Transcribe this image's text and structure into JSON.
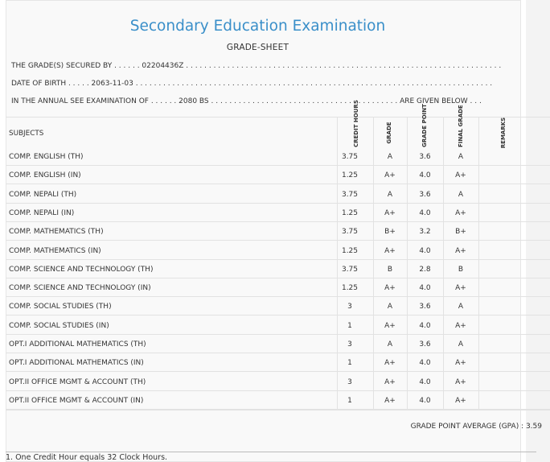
{
  "header": {
    "title": "Secondary Education Examination",
    "subtitle": "GRADE-SHEET"
  },
  "info": {
    "grade_line": "THE GRADE(S) SECURED BY . . . . . . 02204436Z . . . . . . . . . . . . . . . . . . . . . . . . . . . . . . . . . . . . . . . . . . . . . . . . . . . . . . . . . . . . . . . . . . . . . . . . . .",
    "dob_line": "DATE OF BIRTH . . . . . 2063-11-03 . . . . . . . . . . . . . . . . . . . . . . . . . . . . . . . . . . . . . . . . . . . . . . . . . . . . . . . . . . . . . . . . . . . . . . . . . . . . . .",
    "exam_line": "IN THE ANNUAL SEE EXAMINATION OF . . . . . . 2080 BS . . . . . . . . . . . . . . . . . . . . . . . . . . . . . . . . . . . . . . . . . ARE GIVEN BELOW . . ."
  },
  "table": {
    "headers": {
      "subjects": "SUBJECTS",
      "credit_hours": "CREDIT HOURS",
      "grade": "GRADE",
      "grade_point": "GRADE POINT",
      "final_grade": "FINAL GRADE",
      "remarks": "REMARKS"
    },
    "rows": [
      {
        "subject": "COMP. ENGLISH (TH)",
        "credit": "3.75",
        "grade": "A",
        "point": "3.6",
        "final": "A"
      },
      {
        "subject": "COMP. ENGLISH (IN)",
        "credit": "1.25",
        "grade": "A+",
        "point": "4.0",
        "final": "A+"
      },
      {
        "subject": "COMP. NEPALI (TH)",
        "credit": "3.75",
        "grade": "A",
        "point": "3.6",
        "final": "A"
      },
      {
        "subject": "COMP. NEPALI (IN)",
        "credit": "1.25",
        "grade": "A+",
        "point": "4.0",
        "final": "A+"
      },
      {
        "subject": "COMP. MATHEMATICS (TH)",
        "credit": "3.75",
        "grade": "B+",
        "point": "3.2",
        "final": "B+"
      },
      {
        "subject": "COMP. MATHEMATICS (IN)",
        "credit": "1.25",
        "grade": "A+",
        "point": "4.0",
        "final": "A+"
      },
      {
        "subject": "COMP. SCIENCE AND TECHNOLOGY (TH)",
        "credit": "3.75",
        "grade": "B",
        "point": "2.8",
        "final": "B"
      },
      {
        "subject": "COMP. SCIENCE AND TECHNOLOGY (IN)",
        "credit": "1.25",
        "grade": "A+",
        "point": "4.0",
        "final": "A+"
      },
      {
        "subject": "COMP. SOCIAL STUDIES (TH)",
        "credit": "3",
        "grade": "A",
        "point": "3.6",
        "final": "A"
      },
      {
        "subject": "COMP. SOCIAL STUDIES (IN)",
        "credit": "1",
        "grade": "A+",
        "point": "4.0",
        "final": "A+"
      },
      {
        "subject": "OPT.I ADDITIONAL MATHEMATICS (TH)",
        "credit": "3",
        "grade": "A",
        "point": "3.6",
        "final": "A"
      },
      {
        "subject": "OPT.I ADDITIONAL MATHEMATICS (IN)",
        "credit": "1",
        "grade": "A+",
        "point": "4.0",
        "final": "A+"
      },
      {
        "subject": "OPT.II OFFICE MGMT & ACCOUNT (TH)",
        "credit": "3",
        "grade": "A+",
        "point": "4.0",
        "final": "A+"
      },
      {
        "subject": "OPT.II OFFICE MGMT & ACCOUNT (IN)",
        "credit": "1",
        "grade": "A+",
        "point": "4.0",
        "final": "A+"
      }
    ]
  },
  "gpa": "GRADE POINT AVERAGE (GPA) : 3.59",
  "footnote": "1. One Credit Hour equals 32 Clock Hours."
}
